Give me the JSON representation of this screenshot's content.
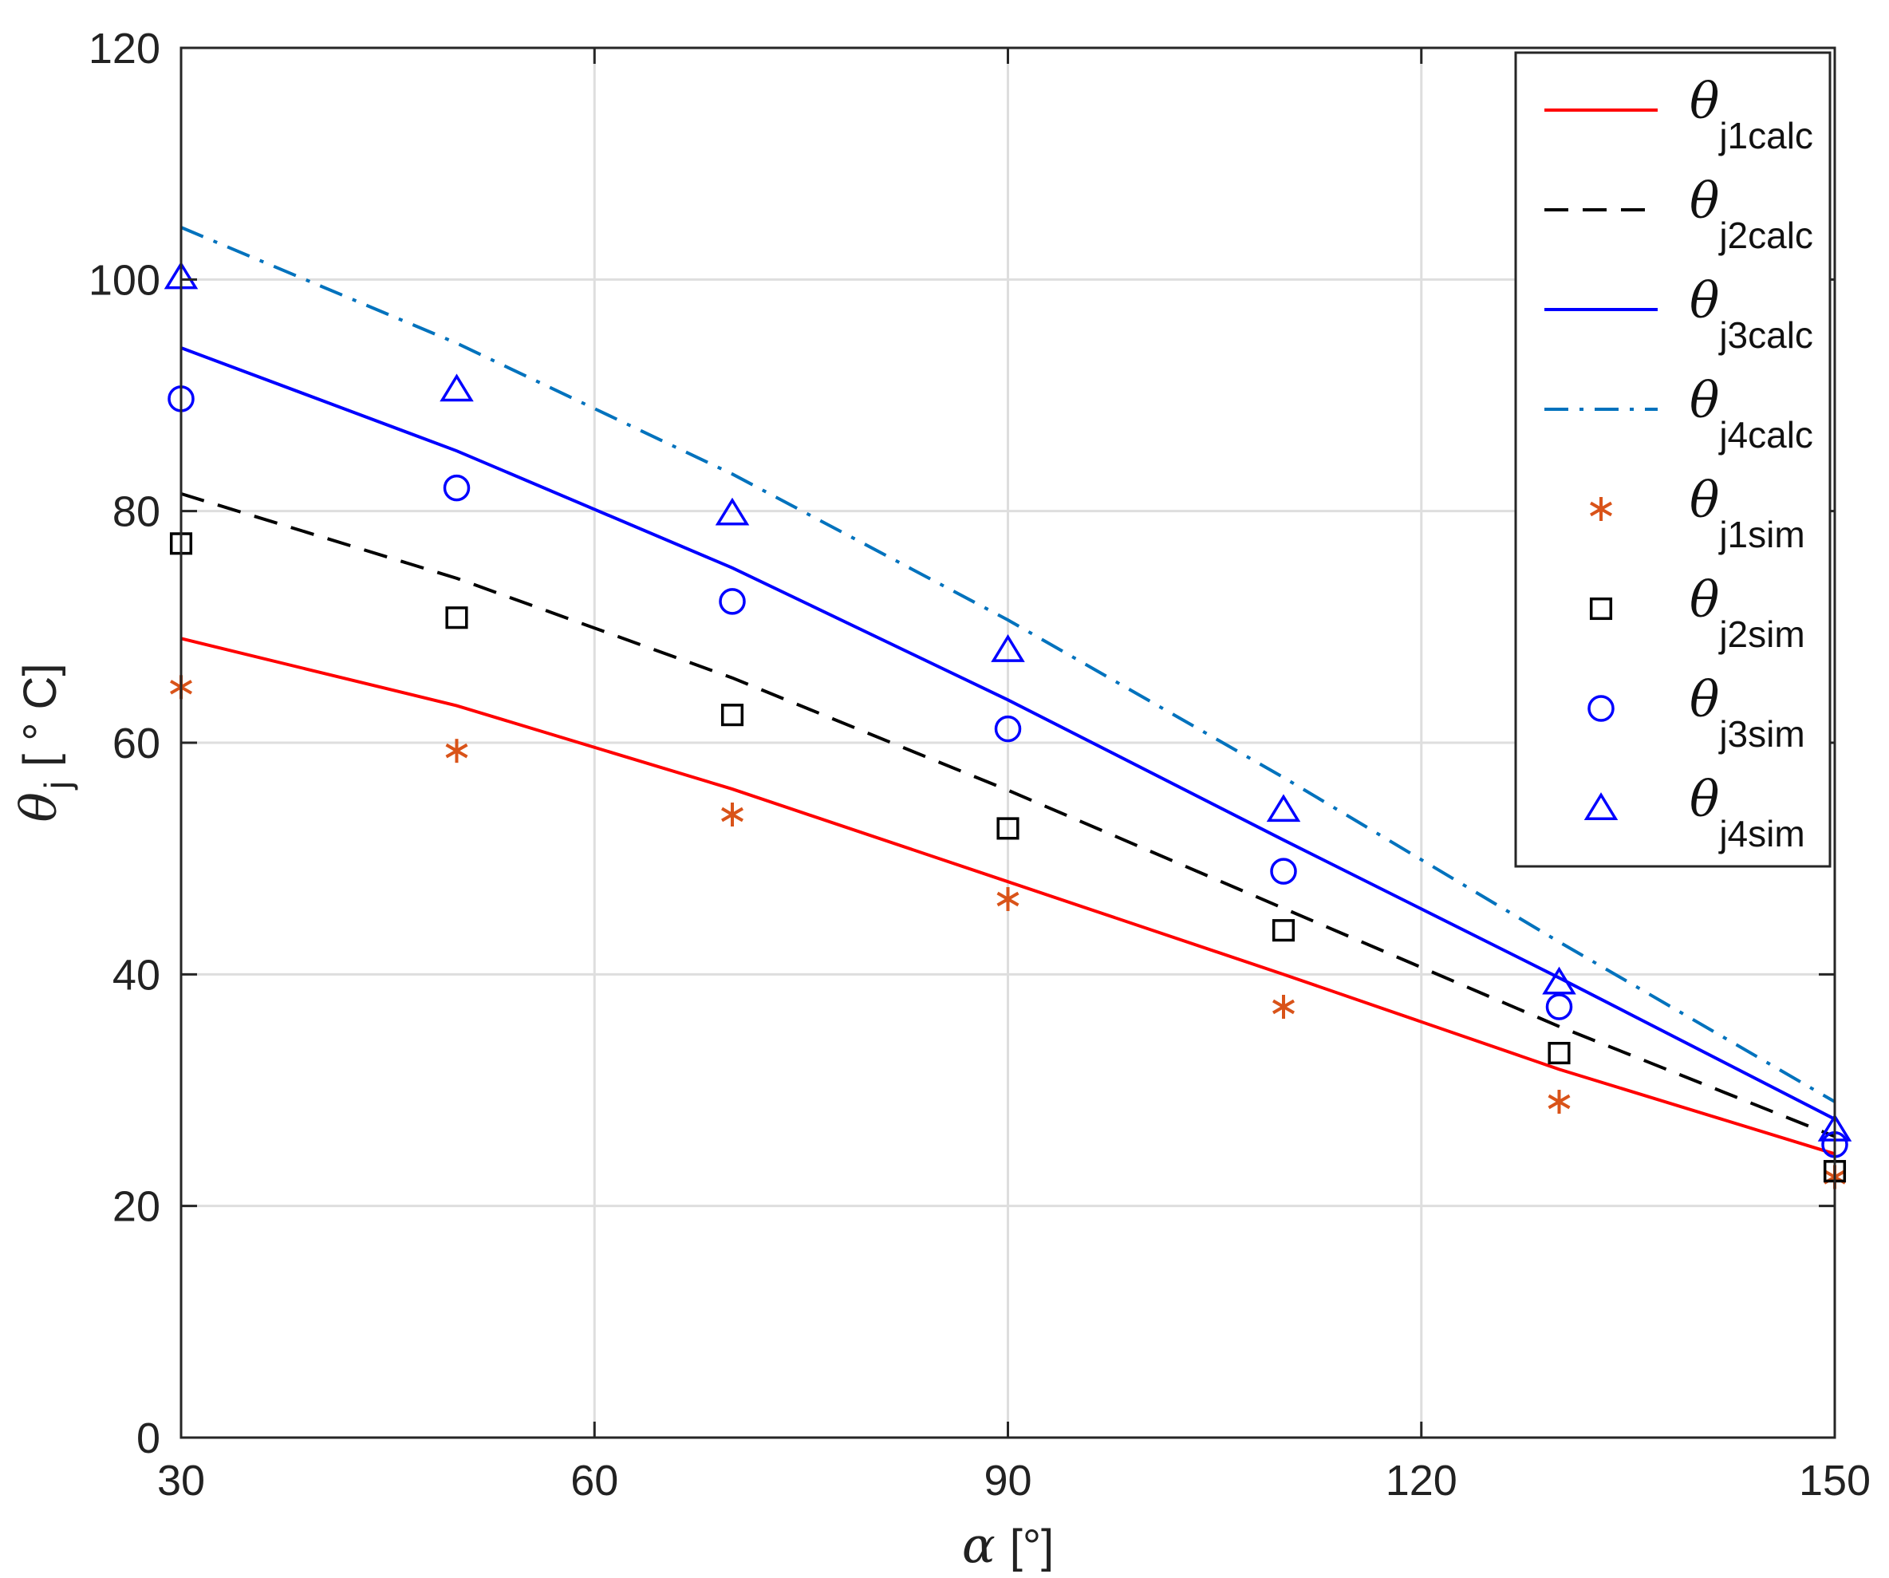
{
  "chart_data": {
    "type": "line",
    "xlabel": {
      "symbol": "α",
      "unit": "[°]"
    },
    "ylabel": {
      "symbol": "θ",
      "subscript": "j",
      "unit": "[ ° C]"
    },
    "xlim": [
      30,
      150
    ],
    "ylim": [
      0,
      120
    ],
    "xticks": [
      30,
      60,
      90,
      120,
      150
    ],
    "yticks": [
      0,
      20,
      40,
      60,
      80,
      100,
      120
    ],
    "grid": true,
    "legend_position": "top-right",
    "x": [
      30,
      50,
      70,
      90,
      110,
      130,
      150
    ],
    "series": [
      {
        "name": "θj1calc",
        "symbol": "θ",
        "subscript": "j1calc",
        "kind": "line",
        "style": "solid",
        "color": "#ff0000",
        "values": [
          69,
          63.2,
          56,
          48,
          40,
          31.8,
          24.5
        ]
      },
      {
        "name": "θj2calc",
        "symbol": "θ",
        "subscript": "j2calc",
        "kind": "line",
        "style": "dashed",
        "color": "#000000",
        "values": [
          81.5,
          74.2,
          65.6,
          55.9,
          45.7,
          35.5,
          26
        ]
      },
      {
        "name": "θj3calc",
        "symbol": "θ",
        "subscript": "j3calc",
        "kind": "line",
        "style": "solid",
        "color": "#0000ff",
        "values": [
          94.1,
          85.2,
          75.1,
          63.7,
          51.6,
          39.7,
          27.5
        ]
      },
      {
        "name": "θj4calc",
        "symbol": "θ",
        "subscript": "j4calc",
        "kind": "line",
        "style": "dashdot",
        "color": "#0072bd",
        "values": [
          104.5,
          94.5,
          83.2,
          70.6,
          57,
          42.8,
          29
        ]
      },
      {
        "name": "θj1sim",
        "symbol": "θ",
        "subscript": "j1sim",
        "kind": "marker",
        "marker": "asterisk",
        "color": "#d95319",
        "values": [
          64.8,
          59.3,
          53.8,
          46.5,
          37.2,
          29,
          22.5
        ]
      },
      {
        "name": "θj2sim",
        "symbol": "θ",
        "subscript": "j2sim",
        "kind": "marker",
        "marker": "square",
        "color": "#000000",
        "values": [
          77.2,
          70.8,
          62.4,
          52.6,
          43.8,
          33.2,
          23
        ]
      },
      {
        "name": "θj3sim",
        "symbol": "θ",
        "subscript": "j3sim",
        "kind": "marker",
        "marker": "circle",
        "color": "#0000ff",
        "values": [
          89.7,
          82,
          72.2,
          61.2,
          48.9,
          37.2,
          25.3
        ]
      },
      {
        "name": "θj4sim",
        "symbol": "θ",
        "subscript": "j4sim",
        "kind": "marker",
        "marker": "triangle",
        "color": "#0000ff",
        "values": [
          100.2,
          90.5,
          79.8,
          68,
          54.2,
          39.3,
          26.6
        ]
      }
    ]
  }
}
